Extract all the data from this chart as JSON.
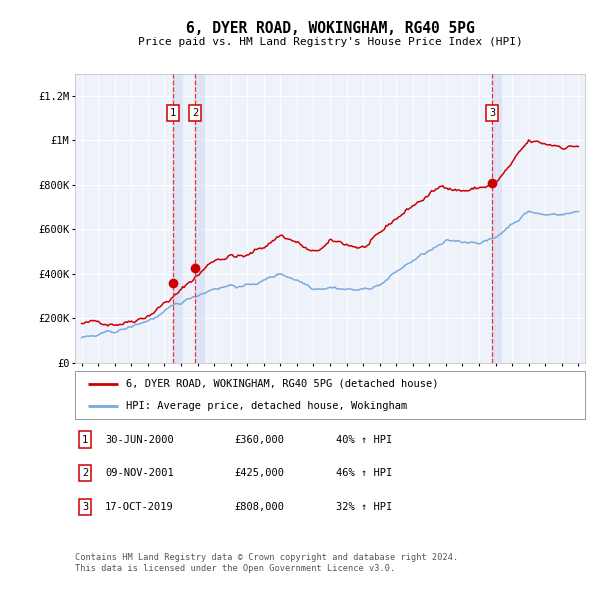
{
  "title": "6, DYER ROAD, WOKINGHAM, RG40 5PG",
  "subtitle": "Price paid vs. HM Land Registry's House Price Index (HPI)",
  "ylim": [
    0,
    1300000
  ],
  "yticks": [
    0,
    200000,
    400000,
    600000,
    800000,
    1000000,
    1200000
  ],
  "ytick_labels": [
    "£0",
    "£200K",
    "£400K",
    "£600K",
    "£800K",
    "£1M",
    "£1.2M"
  ],
  "background_color": "#ffffff",
  "plot_bg_color": "#eef2fb",
  "grid_color": "#ffffff",
  "sale_dates": [
    2000.5,
    2001.86,
    2019.79
  ],
  "sale_prices": [
    360000,
    425000,
    808000
  ],
  "sale_labels": [
    "1",
    "2",
    "3"
  ],
  "sale_info": [
    {
      "num": "1",
      "date": "30-JUN-2000",
      "price": "£360,000",
      "hpi": "40% ↑ HPI"
    },
    {
      "num": "2",
      "date": "09-NOV-2001",
      "price": "£425,000",
      "hpi": "46% ↑ HPI"
    },
    {
      "num": "3",
      "date": "17-OCT-2019",
      "price": "£808,000",
      "hpi": "32% ↑ HPI"
    }
  ],
  "line1_color": "#cc0000",
  "line2_color": "#7aaadd",
  "sale_marker_color": "#cc0000",
  "vline_color": "#ee3333",
  "shade_color": "#ccd8f0",
  "legend_label1": "6, DYER ROAD, WOKINGHAM, RG40 5PG (detached house)",
  "legend_label2": "HPI: Average price, detached house, Wokingham",
  "footer1": "Contains HM Land Registry data © Crown copyright and database right 2024.",
  "footer2": "This data is licensed under the Open Government Licence v3.0.",
  "xlim_left": 1994.6,
  "xlim_right": 2025.4
}
